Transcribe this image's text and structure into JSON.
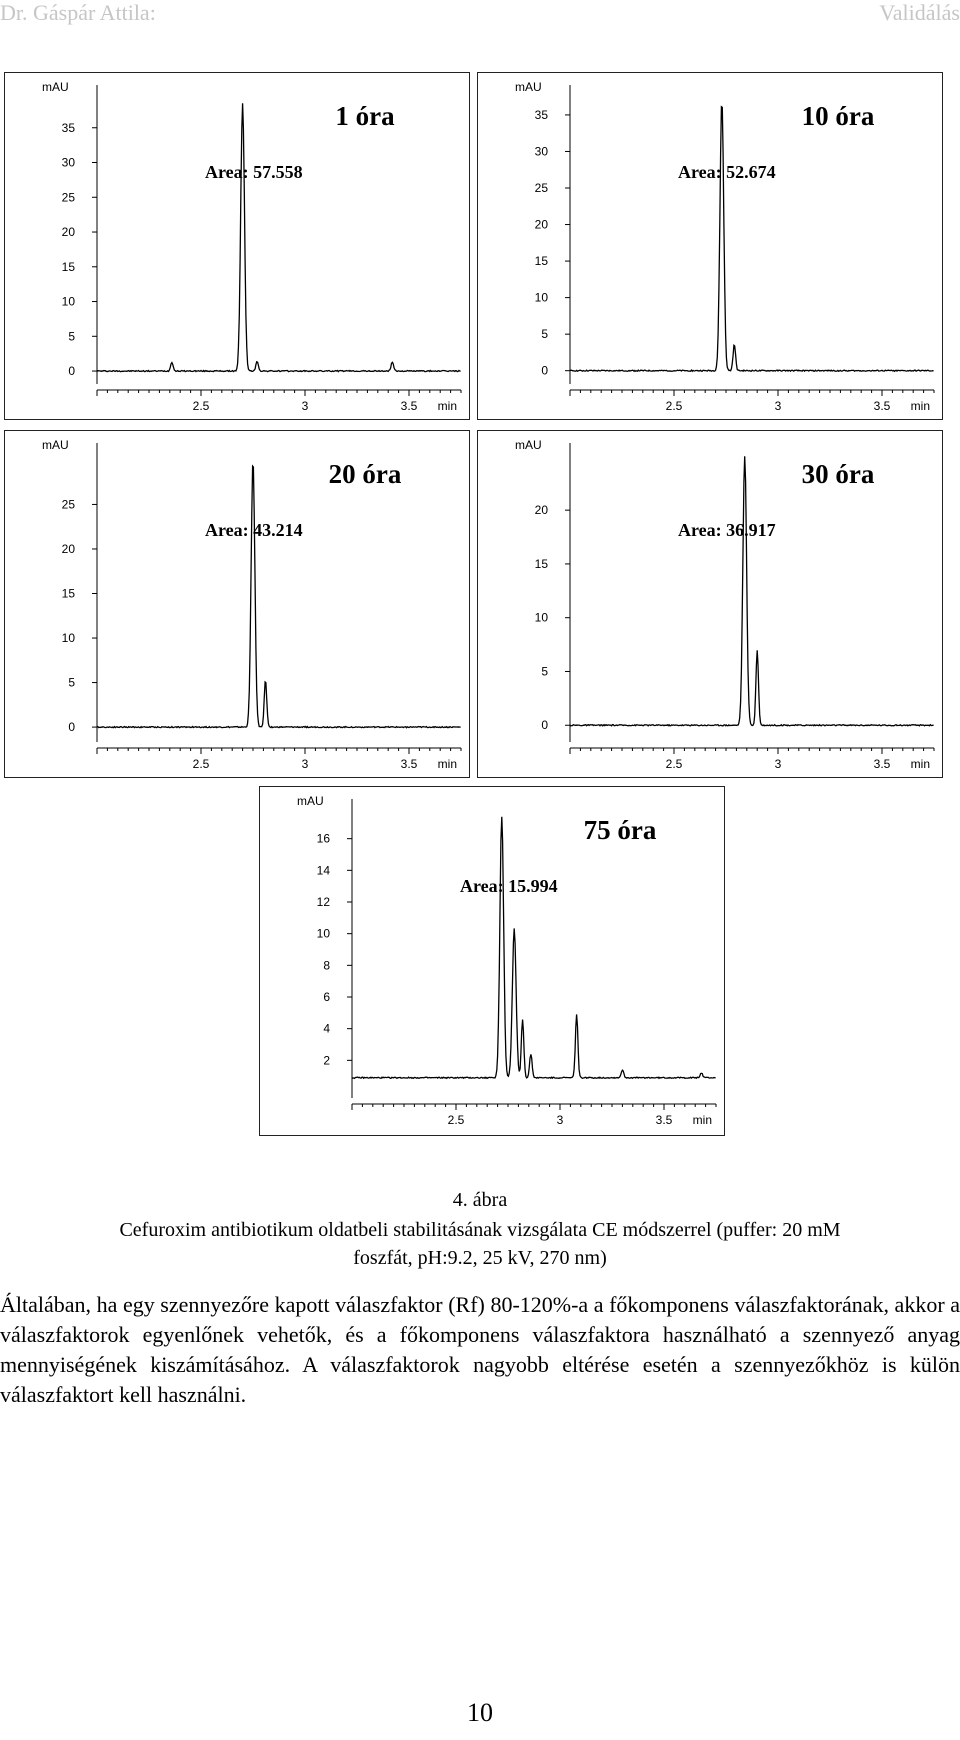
{
  "header": {
    "author": "Dr. Gáspár Attila:",
    "topic": "Validálás"
  },
  "chart_data": [
    {
      "type": "line",
      "title": "1 óra",
      "annotation": "Area: 57.558",
      "xlabel": "min",
      "ylabel": "mAU",
      "xlim": [
        2.0,
        3.75
      ],
      "ylim": [
        -1,
        40
      ],
      "x_ticks": [
        2.5,
        3,
        3.5
      ],
      "y_ticks": [
        0,
        5,
        10,
        15,
        20,
        25,
        30,
        35
      ],
      "peaks": [
        {
          "x": 2.36,
          "y": 1.3
        },
        {
          "x": 2.7,
          "y": 38.5
        },
        {
          "x": 2.77,
          "y": 1.4
        },
        {
          "x": 3.42,
          "y": 1.3
        }
      ]
    },
    {
      "type": "line",
      "title": "10 óra",
      "annotation": "Area: 52.674",
      "xlabel": "min",
      "ylabel": "mAU",
      "xlim": [
        2.0,
        3.75
      ],
      "ylim": [
        -1,
        38
      ],
      "x_ticks": [
        2.5,
        3,
        3.5
      ],
      "y_ticks": [
        0,
        5,
        10,
        15,
        20,
        25,
        30,
        35
      ],
      "peaks": [
        {
          "x": 2.73,
          "y": 37.0
        },
        {
          "x": 2.79,
          "y": 3.6
        }
      ]
    },
    {
      "type": "line",
      "title": "20 óra",
      "annotation": "Area: 43.214",
      "xlabel": "min",
      "ylabel": "mAU",
      "xlim": [
        2.0,
        3.75
      ],
      "ylim": [
        -1,
        31
      ],
      "x_ticks": [
        2.5,
        3,
        3.5
      ],
      "y_ticks": [
        0,
        5,
        10,
        15,
        20,
        25
      ],
      "peaks": [
        {
          "x": 2.75,
          "y": 30.0
        },
        {
          "x": 2.81,
          "y": 5.3
        }
      ]
    },
    {
      "type": "line",
      "title": "30 óra",
      "annotation": "Area: 36.917",
      "xlabel": "min",
      "ylabel": "mAU",
      "xlim": [
        2.0,
        3.75
      ],
      "ylim": [
        -1,
        25.5
      ],
      "x_ticks": [
        2.5,
        3,
        3.5
      ],
      "y_ticks": [
        0,
        5,
        10,
        15,
        20
      ],
      "peaks": [
        {
          "x": 2.84,
          "y": 25.0
        },
        {
          "x": 2.9,
          "y": 7.0
        }
      ]
    },
    {
      "type": "line",
      "title": "75 óra",
      "annotation": "Area: 15.994",
      "xlabel": "min",
      "ylabel": "mAU",
      "xlim": [
        2.0,
        3.75
      ],
      "ylim": [
        0,
        18
      ],
      "x_ticks": [
        2.5,
        3,
        3.5
      ],
      "y_ticks": [
        2,
        4,
        6,
        8,
        10,
        12,
        14,
        16
      ],
      "peaks": [
        {
          "x": 2.72,
          "y": 17.4
        },
        {
          "x": 2.78,
          "y": 10.3
        },
        {
          "x": 2.82,
          "y": 4.6
        },
        {
          "x": 2.86,
          "y": 2.4
        },
        {
          "x": 3.08,
          "y": 4.9
        },
        {
          "x": 3.3,
          "y": 1.4
        },
        {
          "x": 3.68,
          "y": 1.2
        }
      ]
    }
  ],
  "caption": {
    "figure_number": "4. ábra",
    "line1": "Cefuroxim antibiotikum oldatbeli stabilitásának vizsgálata CE módszerrel (puffer: 20 mM",
    "line2": "foszfát, pH:9.2, 25 kV, 270 nm)"
  },
  "paragraph": "Általában, ha egy szennyezőre kapott válaszfaktor (Rf) 80-120%-a a főkomponens válaszfaktorának, akkor a válaszfaktorok egyenlőnek vehetők, és a főkomponens válaszfaktora használható a szennyező anyag mennyiségének kiszámításához. A válaszfaktorok nagyobb eltérése esetén a szennyezőkhöz is külön válaszfaktort kell használni.",
  "page_number": "10"
}
